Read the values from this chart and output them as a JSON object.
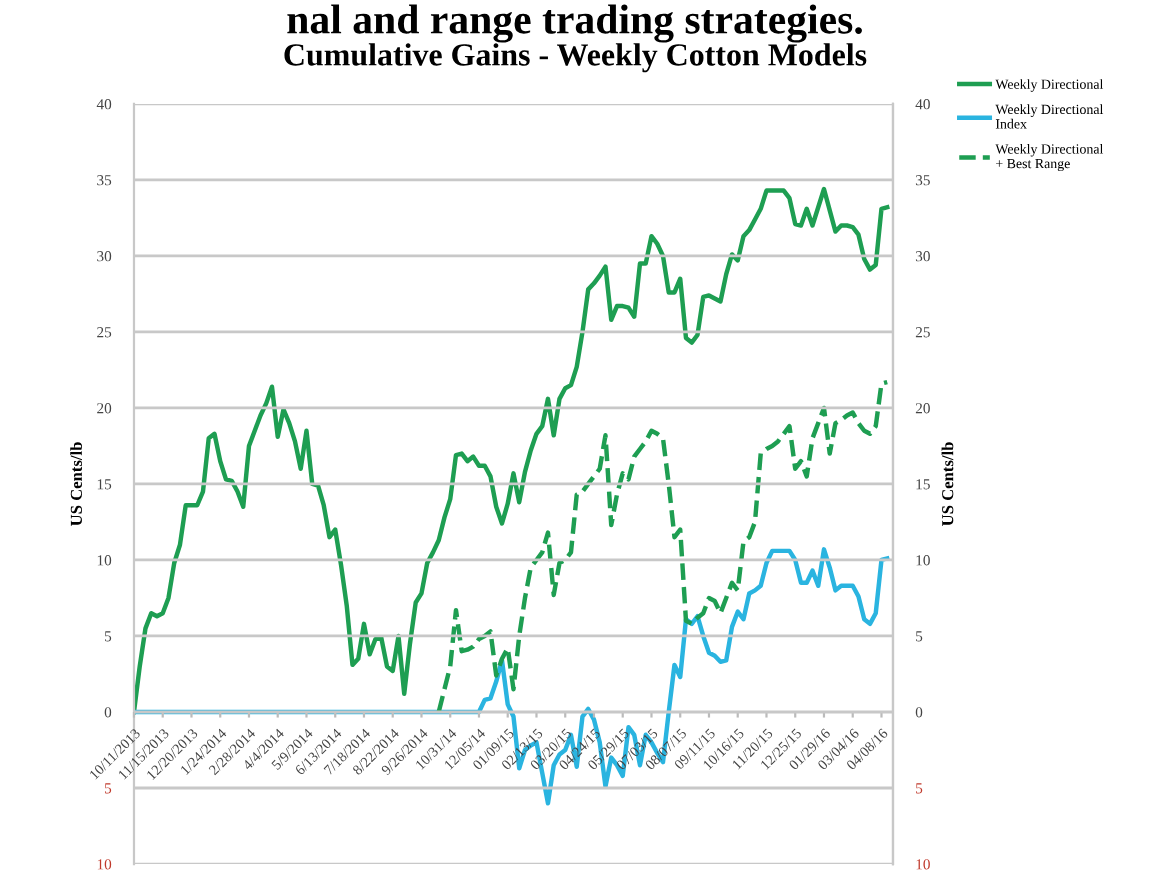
{
  "chart_data": {
    "type": "line",
    "title": "Cumulative Gains - Weekly Cotton Models",
    "annotations": [
      "nal and range trading strategies."
    ],
    "ylabel": "US Cents/lb",
    "y2label": "US Cents/lb",
    "categories": [
      "10/11/2013",
      null,
      null,
      null,
      null,
      "11/15/2013",
      null,
      null,
      null,
      null,
      "12/20/2013",
      null,
      null,
      null,
      null,
      "1/24/2014",
      null,
      null,
      null,
      null,
      "2/28/2014",
      null,
      null,
      null,
      null,
      "4/4/2014",
      null,
      null,
      null,
      null,
      "5/9/2014",
      null,
      null,
      null,
      null,
      "6/13/2014",
      null,
      null,
      null,
      null,
      "7/18/2014",
      null,
      null,
      null,
      null,
      "8/22/2014",
      null,
      null,
      null,
      null,
      "9/26/2014",
      null,
      null,
      null,
      null,
      "10/31/14",
      null,
      null,
      null,
      null,
      "12/05/14",
      null,
      null,
      null,
      null,
      "01/09/15",
      null,
      null,
      null,
      null,
      "02/13/15",
      null,
      null,
      null,
      null,
      "03/20/15",
      null,
      null,
      null,
      null,
      "04/24/15",
      null,
      null,
      null,
      null,
      "05/29/15",
      null,
      null,
      null,
      null,
      "07/03/15",
      null,
      null,
      null,
      null,
      "08/07/15",
      null,
      null,
      null,
      null,
      "09/11/15",
      null,
      null,
      null,
      null,
      "10/16/15",
      null,
      null,
      null,
      null,
      "11/20/15",
      null,
      null,
      null,
      null,
      "12/25/15",
      null,
      null,
      null,
      null,
      "01/29/16",
      null,
      null,
      null,
      null,
      "03/04/16",
      null,
      null,
      null,
      null,
      "04/08/16",
      null
    ],
    "series": [
      {
        "name": "Weekly Directional",
        "color": "#1e9e52",
        "line_style": "solid",
        "values": [
          0,
          3,
          5.5,
          6.5,
          6.3,
          6.5,
          7.5,
          9.8,
          11,
          13.6,
          13.6,
          13.6,
          14.5,
          18,
          18.3,
          16.5,
          15.3,
          15.2,
          14.5,
          13.5,
          17.5,
          18.5,
          19.5,
          20.3,
          21.4,
          18.1,
          19.9,
          19,
          17.8,
          16,
          18.5,
          15,
          14.9,
          13.6,
          11.5,
          12,
          9.7,
          7,
          3.1,
          3.5,
          5.8,
          3.8,
          4.8,
          4.9,
          3,
          2.7,
          5,
          1.2,
          4.5,
          7.2,
          7.8,
          9.8,
          10.5,
          11.3,
          12.8,
          14,
          16.9,
          17,
          16.5,
          16.8,
          16.2,
          16.2,
          15.5,
          13.5,
          12.4,
          13.7,
          15.7,
          13.8,
          15.8,
          17.2,
          18.3,
          18.8,
          20.6,
          18.2,
          20.6,
          21.3,
          21.5,
          22.7,
          25,
          27.8,
          28.2,
          28.7,
          29.3,
          25.8,
          26.7,
          26.7,
          26.6,
          26,
          29.5,
          29.5,
          31.3,
          30.8,
          30,
          27.6,
          27.6,
          28.5,
          24.6,
          24.3,
          24.8,
          27.3,
          27.4,
          27.2,
          27,
          28.8,
          30.1,
          29.7,
          31.3,
          31.7,
          32.4,
          33.1,
          34.3,
          34.3,
          34.3,
          34.3,
          33.8,
          32.1,
          32,
          33.1,
          32,
          33.2,
          34.4,
          33,
          31.6,
          32,
          32,
          31.9,
          31.4,
          29.8,
          29.1,
          29.4,
          33.1,
          33.2
        ]
      },
      {
        "name": "Weekly Directional Index",
        "color": "#2ab4e0",
        "line_style": "solid",
        "values": [
          0,
          0,
          0,
          0,
          0,
          0,
          0,
          0,
          0,
          0,
          0,
          0,
          0,
          0,
          0,
          0,
          0,
          0,
          0,
          0,
          0,
          0,
          0,
          0,
          0,
          0,
          0,
          0,
          0,
          0,
          0,
          0,
          0,
          0,
          0,
          0,
          0,
          0,
          0,
          0,
          0,
          0,
          0,
          0,
          0,
          0,
          0,
          0,
          0,
          0,
          0,
          0,
          0,
          0,
          0,
          0,
          0,
          0,
          0,
          0,
          0,
          0.8,
          0.9,
          2,
          3.4,
          0.5,
          -0.3,
          -3.7,
          -2.5,
          -2.2,
          -2,
          -4,
          -6,
          -3.5,
          -2.8,
          -2.5,
          -1.5,
          -3.6,
          -0.3,
          0.2,
          -0.5,
          -2,
          -4.9,
          -3,
          -3.5,
          -4.2,
          -1,
          -1.5,
          -3.5,
          -1.5,
          -2,
          -2.7,
          -3.3,
          0,
          3.1,
          2.3,
          6.1,
          5.8,
          6.3,
          5,
          3.9,
          3.7,
          3.3,
          3.4,
          5.6,
          6.6,
          6.1,
          7.8,
          8,
          8.3,
          9.8,
          10.6,
          10.6,
          10.6,
          10.6,
          10,
          8.5,
          8.5,
          9.3,
          8.3,
          10.7,
          9.5,
          8,
          8.3,
          8.3,
          8.3,
          7.6,
          6.1,
          5.8,
          6.5,
          10,
          10.1
        ]
      },
      {
        "name": "Weekly Directional + Best Range",
        "color": "#1e9e52",
        "line_style": "dashed",
        "values": [
          null,
          null,
          null,
          null,
          null,
          null,
          null,
          null,
          null,
          null,
          null,
          null,
          null,
          null,
          null,
          null,
          null,
          null,
          null,
          null,
          null,
          null,
          null,
          null,
          null,
          null,
          null,
          null,
          null,
          null,
          null,
          null,
          null,
          null,
          null,
          null,
          null,
          null,
          null,
          null,
          null,
          null,
          null,
          null,
          null,
          null,
          null,
          null,
          null,
          null,
          null,
          null,
          null,
          0,
          1.5,
          3,
          6.7,
          4,
          4.1,
          4.3,
          4.8,
          5,
          5.3,
          2.4,
          3.5,
          4.2,
          1.5,
          5,
          7.5,
          9.5,
          10,
          10.5,
          11.8,
          7.7,
          9.8,
          10,
          10.5,
          14.3,
          14.5,
          15,
          15.5,
          16,
          18.2,
          12.3,
          14.3,
          15.7,
          15.3,
          16.8,
          17.3,
          17.8,
          18.5,
          18.3,
          18,
          15,
          11.5,
          12,
          6,
          5.8,
          6.2,
          6.5,
          7.5,
          7.3,
          6.5,
          7.5,
          8.5,
          8,
          11.2,
          11.5,
          12.5,
          17,
          17.3,
          17.5,
          17.8,
          18.3,
          18.8,
          16,
          16.5,
          15.5,
          18,
          19,
          20,
          17,
          19,
          19.2,
          19.5,
          19.7,
          19,
          18.5,
          18.3,
          18.8,
          21.6,
          21.7
        ]
      }
    ],
    "ylim": [
      -10,
      40
    ],
    "yticks": [
      {
        "value": -10,
        "label": "10"
      },
      {
        "value": -5,
        "label": "5"
      },
      0,
      5,
      10,
      15,
      20,
      25,
      30,
      35,
      40
    ],
    "y2lim": [
      -10,
      40
    ],
    "y2ticks": [
      {
        "value": -10,
        "label": "10"
      },
      {
        "value": -5,
        "label": "5"
      },
      0,
      5,
      10,
      15,
      20,
      25,
      30,
      35,
      40
    ],
    "grid": "y",
    "legend": "top right",
    "marker": "none"
  }
}
